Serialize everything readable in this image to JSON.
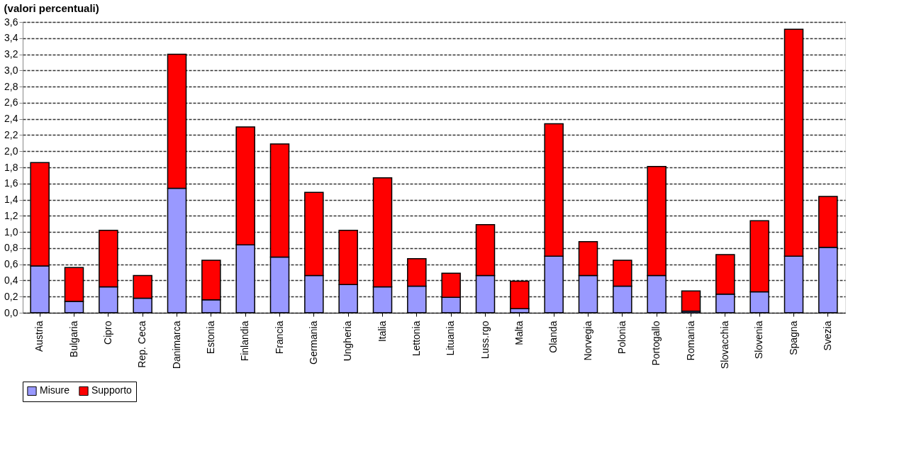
{
  "chart_data": {
    "type": "bar",
    "title": "(valori percentuali)",
    "stacked": true,
    "categories": [
      "Austria",
      "Bulgaria",
      "Cipro",
      "Rep. Ceca",
      "Danimarca",
      "Estonia",
      "Finlandia",
      "Francia",
      "Germania",
      "Ungheria",
      "Italia",
      "Lettonia",
      "Lituania",
      "Luss.rgo",
      "Malta",
      "Olanda",
      "Norvegia",
      "Polonia",
      "Portogallo",
      "Romania",
      "Slovacchia",
      "Slovenia",
      "Spagna",
      "Svezia"
    ],
    "series": [
      {
        "name": "Misure",
        "color": "#9999ff",
        "values": [
          0.58,
          0.14,
          0.32,
          0.18,
          1.54,
          0.16,
          0.84,
          0.69,
          0.46,
          0.35,
          0.32,
          0.33,
          0.19,
          0.46,
          0.05,
          0.7,
          0.46,
          0.33,
          0.46,
          0.02,
          0.23,
          0.26,
          0.7,
          0.81
        ]
      },
      {
        "name": "Supporto",
        "color": "#ff0000",
        "values": [
          1.28,
          0.42,
          0.7,
          0.28,
          1.66,
          0.49,
          1.46,
          1.4,
          1.03,
          0.67,
          1.35,
          0.34,
          0.3,
          0.63,
          0.34,
          1.64,
          0.42,
          0.32,
          1.35,
          0.25,
          0.49,
          0.88,
          2.81,
          0.63
        ]
      }
    ],
    "ylim": [
      0,
      3.6
    ],
    "yticks": [
      {
        "value": 0,
        "label": "0,0"
      },
      {
        "value": 0.2,
        "label": "0,2"
      },
      {
        "value": 0.4,
        "label": "0,4"
      },
      {
        "value": 0.6,
        "label": "0,6"
      },
      {
        "value": 0.8,
        "label": "0,8"
      },
      {
        "value": 1.0,
        "label": "1,0"
      },
      {
        "value": 1.2,
        "label": "1,2"
      },
      {
        "value": 1.4,
        "label": "1,4"
      },
      {
        "value": 1.6,
        "label": "1,6"
      },
      {
        "value": 1.8,
        "label": "1,8"
      },
      {
        "value": 2.0,
        "label": "2,0"
      },
      {
        "value": 2.2,
        "label": "2,2"
      },
      {
        "value": 2.4,
        "label": "2,4"
      },
      {
        "value": 2.6,
        "label": "2,6"
      },
      {
        "value": 2.8,
        "label": "2,8"
      },
      {
        "value": 3.0,
        "label": "3,0"
      },
      {
        "value": 3.2,
        "label": "3,2"
      },
      {
        "value": 3.4,
        "label": "3,4"
      },
      {
        "value": 3.6,
        "label": "3,6"
      }
    ],
    "grid": "y",
    "legend": "bottom"
  }
}
